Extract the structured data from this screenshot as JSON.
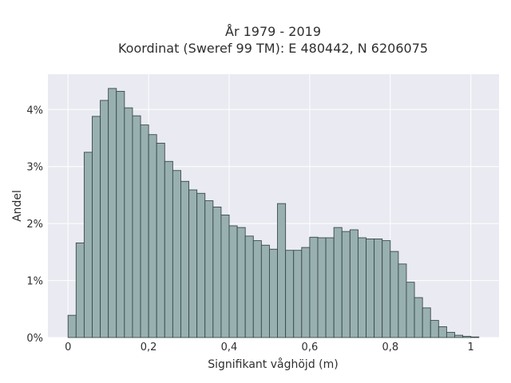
{
  "chart_data": {
    "type": "bar",
    "title": "År 1979 - 2019",
    "subtitle": "Koordinat (Sweref 99 TM): E 480442, N 6206075",
    "xlabel": "Signifikant våghöjd (m)",
    "ylabel": "Andel",
    "xlim": [
      -0.05,
      1.07
    ],
    "ylim": [
      0,
      0.0462
    ],
    "x_ticks": [
      0,
      0.2,
      0.4,
      0.6,
      0.8,
      1.0
    ],
    "x_tick_labels": [
      "0",
      "0,2",
      "0,4",
      "0,6",
      "0,8",
      "1"
    ],
    "y_ticks": [
      0,
      0.01,
      0.02,
      0.03,
      0.04
    ],
    "y_tick_labels": [
      "0%",
      "1%",
      "2%",
      "3%",
      "4%"
    ],
    "grid": true,
    "bin_start": 0.0,
    "bin_width": 0.02,
    "values": [
      0.0039,
      0.0166,
      0.0325,
      0.0388,
      0.0416,
      0.0437,
      0.0432,
      0.0403,
      0.0389,
      0.0373,
      0.0356,
      0.0341,
      0.0309,
      0.0293,
      0.0274,
      0.0259,
      0.0253,
      0.024,
      0.0229,
      0.0215,
      0.0196,
      0.0193,
      0.0178,
      0.017,
      0.0162,
      0.0155,
      0.0235,
      0.0153,
      0.0153,
      0.0158,
      0.0176,
      0.0175,
      0.0175,
      0.0193,
      0.0186,
      0.0189,
      0.0175,
      0.0173,
      0.0173,
      0.017,
      0.0151,
      0.0129,
      0.0097,
      0.007,
      0.0052,
      0.003,
      0.0019,
      0.0009,
      0.0004,
      0.0002,
      0.0001
    ],
    "colors": {
      "bar_fill": "#98b0b0",
      "bar_edge": "#3b4a4a",
      "plot_bg": "#eaeaf2",
      "grid": "#ffffff"
    }
  }
}
